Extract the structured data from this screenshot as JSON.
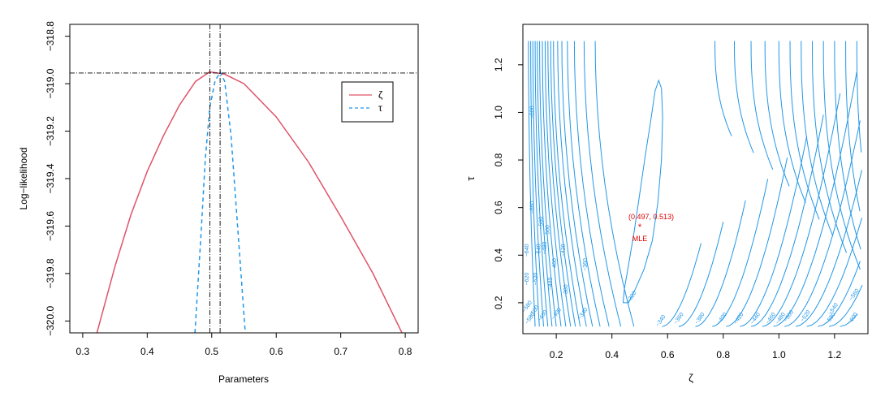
{
  "chart_data": [
    {
      "type": "line",
      "xlabel": "Parameters",
      "ylabel": "Log−likelihood",
      "xlim": [
        0.28,
        0.82
      ],
      "ylim": [
        -320.05,
        -318.75
      ],
      "xticks": [
        "0.3",
        "0.4",
        "0.5",
        "0.6",
        "0.7",
        "0.8"
      ],
      "xtick_values": [
        0.3,
        0.4,
        0.5,
        0.6,
        0.7,
        0.8
      ],
      "yticks": [
        "−318.8",
        "−319.0",
        "−319.2",
        "−319.4",
        "−319.6",
        "−319.8",
        "−320.0"
      ],
      "ytick_values": [
        -318.8,
        -319.0,
        -319.2,
        -319.4,
        -319.6,
        -319.8,
        -320.0
      ],
      "series": [
        {
          "name": "ζ",
          "color": "#DF536B",
          "style": "solid",
          "x": [
            0.322,
            0.35,
            0.375,
            0.4,
            0.425,
            0.45,
            0.475,
            0.497,
            0.52,
            0.55,
            0.6,
            0.65,
            0.7,
            0.75,
            0.795
          ],
          "y": [
            -320.05,
            -319.77,
            -319.55,
            -319.37,
            -319.22,
            -319.09,
            -318.99,
            -318.95,
            -318.96,
            -319.0,
            -319.14,
            -319.33,
            -319.56,
            -319.8,
            -320.05
          ]
        },
        {
          "name": "τ",
          "color": "#2297E6",
          "style": "dashed",
          "x": [
            0.474,
            0.483,
            0.49,
            0.497,
            0.505,
            0.513,
            0.52,
            0.53,
            0.54,
            0.552
          ],
          "y": [
            -320.05,
            -319.65,
            -319.32,
            -319.1,
            -318.99,
            -318.95,
            -318.99,
            -319.22,
            -319.6,
            -320.05
          ]
        }
      ],
      "reference_lines": {
        "vertical": [
          0.497,
          0.513
        ],
        "horizontal": [
          -318.955
        ],
        "style": "dotdash"
      },
      "legend": {
        "position": "top-right",
        "entries": [
          "ζ",
          "τ"
        ]
      }
    },
    {
      "type": "contour",
      "xlabel": "ζ",
      "ylabel": "τ",
      "xlim": [
        0.08,
        1.32
      ],
      "ylim": [
        0.07,
        1.37
      ],
      "xticks": [
        "0.2",
        "0.4",
        "0.6",
        "0.8",
        "1.0",
        "1.2"
      ],
      "xtick_values": [
        0.2,
        0.4,
        0.6,
        0.8,
        1.0,
        1.2
      ],
      "yticks": [
        "0.2",
        "0.4",
        "0.6",
        "0.8",
        "1.0",
        "1.2"
      ],
      "ytick_values": [
        0.2,
        0.4,
        0.6,
        0.8,
        1.0,
        1.2
      ],
      "line_color": "#2297E6",
      "mle": {
        "x": 0.497,
        "y": 0.513,
        "label": "MLE",
        "coord_label": "(0.497, 0.513)",
        "color": "#DF0000"
      },
      "closed_level": "−320",
      "left_contour_zeta": [
        0.1,
        0.108,
        0.116,
        0.124,
        0.132,
        0.14,
        0.15,
        0.16,
        0.17,
        0.18,
        0.19,
        0.205,
        0.22,
        0.24,
        0.265,
        0.3,
        0.34
      ],
      "right_contour_zeta": [
        0.77,
        0.84,
        0.9,
        0.95,
        1.0,
        1.04,
        1.08,
        1.12,
        1.16,
        1.2,
        1.24,
        1.28
      ],
      "left_labels": [
        {
          "text": "−600",
          "zeta": 0.12,
          "tau": 1.0
        },
        {
          "text": "−660",
          "zeta": 0.12,
          "tau": 0.6
        },
        {
          "text": "−560",
          "zeta": 0.152,
          "tau": 0.535
        },
        {
          "text": "−500",
          "zeta": 0.175,
          "tau": 0.5
        },
        {
          "text": "−640",
          "zeta": 0.1,
          "tau": 0.42
        },
        {
          "text": "−540",
          "zeta": 0.142,
          "tau": 0.42
        },
        {
          "text": "−480",
          "zeta": 0.165,
          "tau": 0.43
        },
        {
          "text": "−420",
          "zeta": 0.232,
          "tau": 0.42
        },
        {
          "text": "−460",
          "zeta": 0.2,
          "tau": 0.36
        },
        {
          "text": "−360",
          "zeta": 0.31,
          "tau": 0.36
        },
        {
          "text": "−620",
          "zeta": 0.1,
          "tau": 0.3
        },
        {
          "text": "−520",
          "zeta": 0.132,
          "tau": 0.3
        },
        {
          "text": "−440",
          "zeta": 0.185,
          "tau": 0.28
        },
        {
          "text": "−380",
          "zeta": 0.24,
          "tau": 0.25
        },
        {
          "text": "−580",
          "zeta": 0.1,
          "tau": 0.18
        },
        {
          "text": "−580",
          "zeta": 0.11,
          "tau": 0.13
        },
        {
          "text": "−500",
          "zeta": 0.125,
          "tau": 0.16
        },
        {
          "text": "−460",
          "zeta": 0.155,
          "tau": 0.14
        },
        {
          "text": "−400",
          "zeta": 0.205,
          "tau": 0.15
        },
        {
          "text": "−340",
          "zeta": 0.3,
          "tau": 0.15
        }
      ],
      "inner_labels": [
        {
          "text": "−320",
          "zeta": 0.475,
          "tau": 0.22
        },
        {
          "text": "−340",
          "zeta": 0.58,
          "tau": 0.12
        }
      ],
      "right_labels": [
        {
          "text": "−360",
          "zeta": 0.645,
          "tau": 0.13
        },
        {
          "text": "−380",
          "zeta": 0.72,
          "tau": 0.13
        },
        {
          "text": "−400",
          "zeta": 0.8,
          "tau": 0.13
        },
        {
          "text": "−420",
          "zeta": 0.86,
          "tau": 0.13
        },
        {
          "text": "−440",
          "zeta": 0.92,
          "tau": 0.13
        },
        {
          "text": "−460",
          "zeta": 0.975,
          "tau": 0.13
        },
        {
          "text": "−480",
          "zeta": 1.01,
          "tau": 0.13
        },
        {
          "text": "−500",
          "zeta": 1.04,
          "tau": 0.14
        },
        {
          "text": "−520",
          "zeta": 1.1,
          "tau": 0.14
        },
        {
          "text": "−540",
          "zeta": 1.2,
          "tau": 0.17
        },
        {
          "text": "−560",
          "zeta": 1.275,
          "tau": 0.23
        },
        {
          "text": "−580",
          "zeta": 1.19,
          "tau": 0.13
        },
        {
          "text": "−600",
          "zeta": 1.27,
          "tau": 0.13
        }
      ]
    }
  ]
}
